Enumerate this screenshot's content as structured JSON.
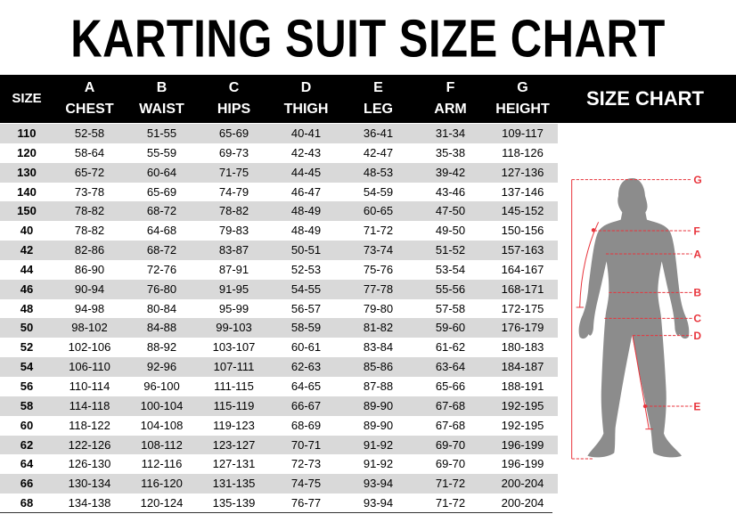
{
  "title": "KARTING SUIT SIZE CHART",
  "header": {
    "size_label": "SIZE",
    "side_label": "SIZE CHART",
    "columns": [
      {
        "letter": "A",
        "name": "CHEST"
      },
      {
        "letter": "B",
        "name": "WAIST"
      },
      {
        "letter": "C",
        "name": "HIPS"
      },
      {
        "letter": "D",
        "name": "THIGH"
      },
      {
        "letter": "E",
        "name": "LEG"
      },
      {
        "letter": "F",
        "name": "ARM"
      },
      {
        "letter": "G",
        "name": "HEIGHT"
      }
    ]
  },
  "rows": [
    [
      "110",
      "52-58",
      "51-55",
      "65-69",
      "40-41",
      "36-41",
      "31-34",
      "109-117"
    ],
    [
      "120",
      "58-64",
      "55-59",
      "69-73",
      "42-43",
      "42-47",
      "35-38",
      "118-126"
    ],
    [
      "130",
      "65-72",
      "60-64",
      "71-75",
      "44-45",
      "48-53",
      "39-42",
      "127-136"
    ],
    [
      "140",
      "73-78",
      "65-69",
      "74-79",
      "46-47",
      "54-59",
      "43-46",
      "137-146"
    ],
    [
      "150",
      "78-82",
      "68-72",
      "78-82",
      "48-49",
      "60-65",
      "47-50",
      "145-152"
    ],
    [
      "40",
      "78-82",
      "64-68",
      "79-83",
      "48-49",
      "71-72",
      "49-50",
      "150-156"
    ],
    [
      "42",
      "82-86",
      "68-72",
      "83-87",
      "50-51",
      "73-74",
      "51-52",
      "157-163"
    ],
    [
      "44",
      "86-90",
      "72-76",
      "87-91",
      "52-53",
      "75-76",
      "53-54",
      "164-167"
    ],
    [
      "46",
      "90-94",
      "76-80",
      "91-95",
      "54-55",
      "77-78",
      "55-56",
      "168-171"
    ],
    [
      "48",
      "94-98",
      "80-84",
      "95-99",
      "56-57",
      "79-80",
      "57-58",
      "172-175"
    ],
    [
      "50",
      "98-102",
      "84-88",
      "99-103",
      "58-59",
      "81-82",
      "59-60",
      "176-179"
    ],
    [
      "52",
      "102-106",
      "88-92",
      "103-107",
      "60-61",
      "83-84",
      "61-62",
      "180-183"
    ],
    [
      "54",
      "106-110",
      "92-96",
      "107-111",
      "62-63",
      "85-86",
      "63-64",
      "184-187"
    ],
    [
      "56",
      "110-114",
      "96-100",
      "111-115",
      "64-65",
      "87-88",
      "65-66",
      "188-191"
    ],
    [
      "58",
      "114-118",
      "100-104",
      "115-119",
      "66-67",
      "89-90",
      "67-68",
      "192-195"
    ],
    [
      "60",
      "118-122",
      "104-108",
      "119-123",
      "68-69",
      "89-90",
      "67-68",
      "192-195"
    ],
    [
      "62",
      "122-126",
      "108-112",
      "123-127",
      "70-71",
      "91-92",
      "69-70",
      "196-199"
    ],
    [
      "64",
      "126-130",
      "112-116",
      "127-131",
      "72-73",
      "91-92",
      "69-70",
      "196-199"
    ],
    [
      "66",
      "130-134",
      "116-120",
      "131-135",
      "74-75",
      "93-94",
      "71-72",
      "200-204"
    ],
    [
      "68",
      "134-138",
      "120-124",
      "135-139",
      "76-77",
      "93-94",
      "71-72",
      "200-204"
    ]
  ],
  "figure": {
    "labels": [
      "G",
      "F",
      "A",
      "B",
      "C",
      "D",
      "E"
    ],
    "silhouette_color": "#8c8c8c",
    "measure_color": "#e8343c"
  },
  "colors": {
    "header_bg": "#000000",
    "row_shade": "#d9d9d9"
  }
}
